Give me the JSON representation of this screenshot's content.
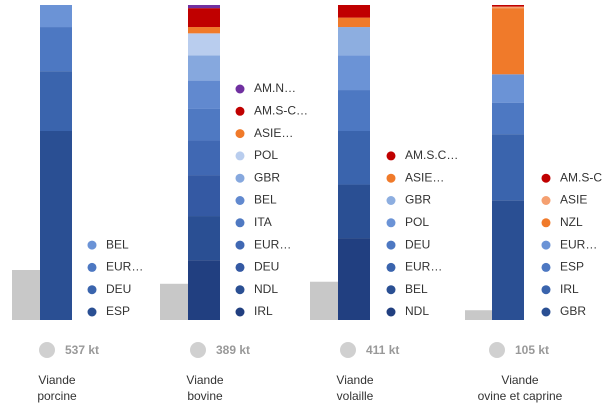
{
  "chart_data": [
    {
      "type": "stacked_bar",
      "label_lines": [
        "Viande",
        "porcine"
      ],
      "total": 537,
      "total_label": "537 kt",
      "series": [
        {
          "name": "ESP",
          "color": "#2a4f93",
          "values": [
            60
          ]
        },
        {
          "name": "DEU",
          "color": "#3a64ad",
          "values": [
            19
          ]
        },
        {
          "name": "EUR…",
          "color": "#4d78c2",
          "values": [
            14
          ]
        },
        {
          "name": "BEL",
          "color": "#6b93d6",
          "values": [
            7
          ]
        }
      ]
    },
    {
      "type": "stacked_bar",
      "label_lines": [
        "Viande",
        "bovine"
      ],
      "total": 389,
      "total_label": "389 kt",
      "series": [
        {
          "name": "IRL",
          "color": "#213f80",
          "values": [
            19
          ]
        },
        {
          "name": "NDL",
          "color": "#2a4f93",
          "values": [
            14
          ]
        },
        {
          "name": "DEU",
          "color": "#3459a3",
          "values": [
            13
          ]
        },
        {
          "name": "EUR…",
          "color": "#4068b3",
          "values": [
            11
          ]
        },
        {
          "name": "ITA",
          "color": "#4f79c2",
          "values": [
            10
          ]
        },
        {
          "name": "BEL",
          "color": "#6189cf",
          "values": [
            9
          ]
        },
        {
          "name": "GBR",
          "color": "#86a8de",
          "values": [
            8
          ]
        },
        {
          "name": "POL",
          "color": "#b9cdee",
          "values": [
            7
          ]
        },
        {
          "name": "ASIE…",
          "color": "#f07a2a",
          "values": [
            2
          ]
        },
        {
          "name": "AM.S-C…",
          "color": "#c00000",
          "values": [
            6
          ]
        },
        {
          "name": "AM.N…",
          "color": "#7030a0",
          "values": [
            1
          ]
        }
      ]
    },
    {
      "type": "stacked_bar",
      "label_lines": [
        "Viande",
        "volaille"
      ],
      "total": 411,
      "total_label": "411 kt",
      "series": [
        {
          "name": "NDL",
          "color": "#213f80",
          "values": [
            26
          ]
        },
        {
          "name": "BEL",
          "color": "#2a4f93",
          "values": [
            17
          ]
        },
        {
          "name": "EUR…",
          "color": "#3a64ad",
          "values": [
            17
          ]
        },
        {
          "name": "DEU",
          "color": "#4d78c2",
          "values": [
            13
          ]
        },
        {
          "name": "POL",
          "color": "#6b93d6",
          "values": [
            11
          ]
        },
        {
          "name": "GBR",
          "color": "#8daee0",
          "values": [
            9
          ]
        },
        {
          "name": "ASIE…",
          "color": "#f07a2a",
          "values": [
            3
          ]
        },
        {
          "name": "AM.S.C…",
          "color": "#c00000",
          "values": [
            4
          ]
        }
      ]
    },
    {
      "type": "stacked_bar",
      "label_lines": [
        "Viande",
        "ovine et caprine"
      ],
      "total": 105,
      "total_label": "105 kt",
      "series": [
        {
          "name": "GBR",
          "color": "#2a4f93",
          "values": [
            38
          ]
        },
        {
          "name": "IRL",
          "color": "#3a64ad",
          "values": [
            21
          ]
        },
        {
          "name": "ESP",
          "color": "#4d78c2",
          "values": [
            10
          ]
        },
        {
          "name": "EUR…",
          "color": "#6b93d6",
          "values": [
            9
          ]
        },
        {
          "name": "NZL",
          "color": "#f07a2a",
          "values": [
            21
          ]
        },
        {
          "name": "ASIE",
          "color": "#f5a070",
          "values": [
            0.5
          ]
        },
        {
          "name": "AM.S-C",
          "color": "#c00000",
          "values": [
            0.5
          ]
        }
      ]
    }
  ]
}
